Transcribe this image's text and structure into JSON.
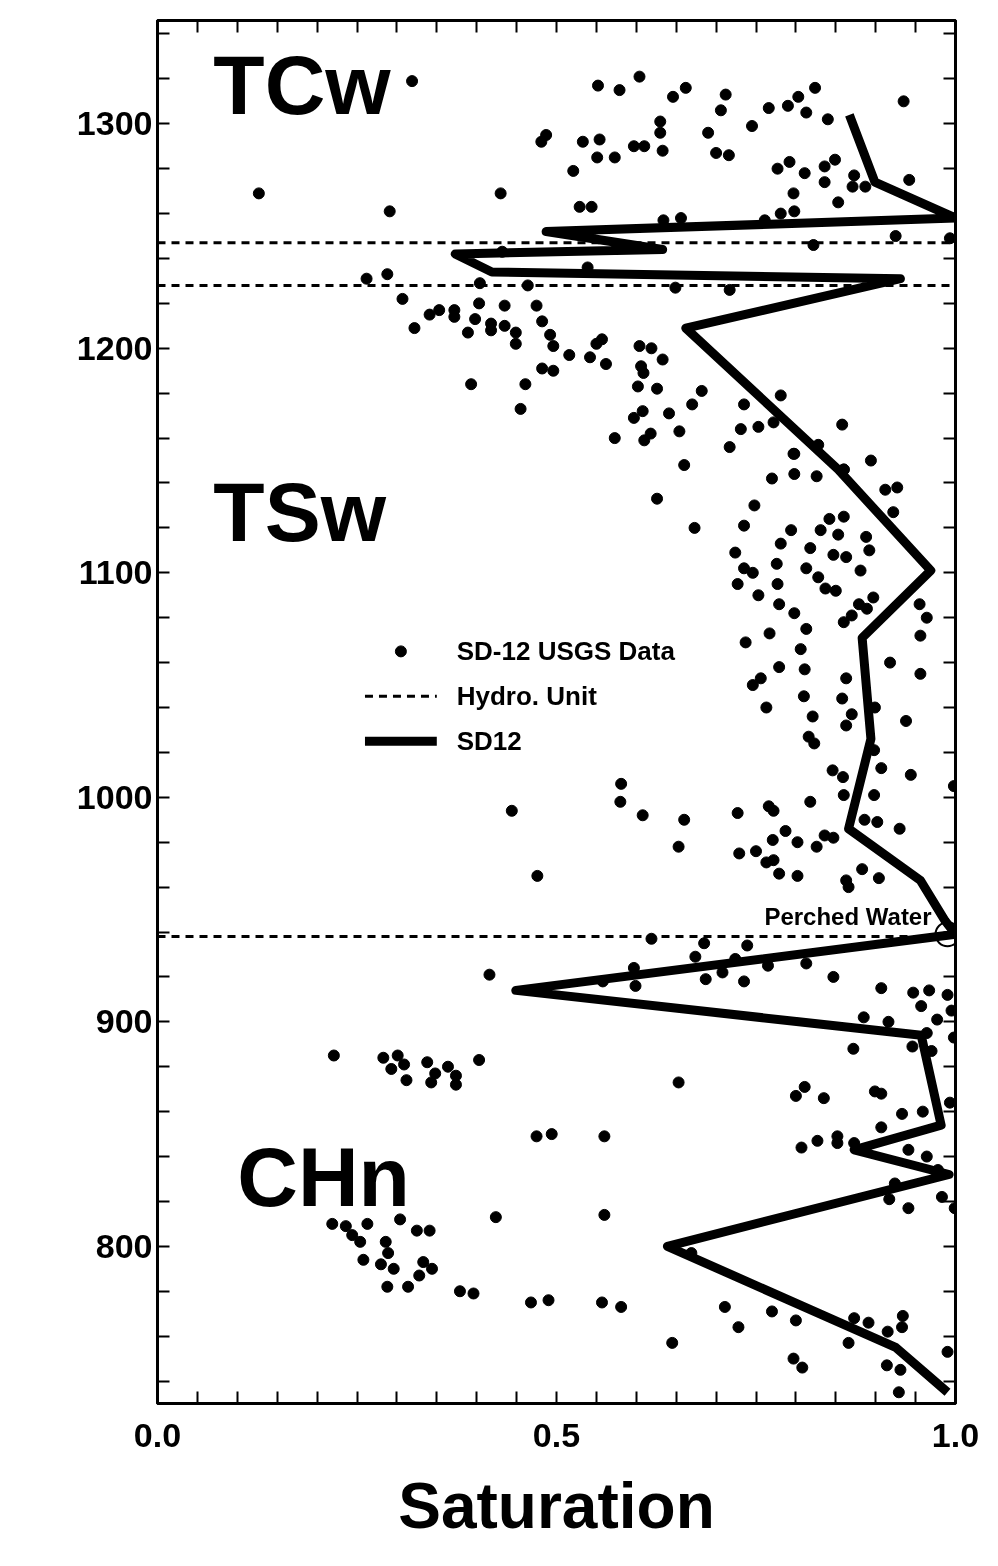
{
  "chart_data": {
    "type": "scatter",
    "xlabel": "Saturation",
    "xlim": [
      0,
      1
    ],
    "ylim": [
      730,
      1346
    ],
    "xticks": [
      {
        "value": 0,
        "label": "0.0"
      },
      {
        "value": 0.05,
        "label": null
      },
      {
        "value": 0.1,
        "label": null
      },
      {
        "value": 0.15,
        "label": null
      },
      {
        "value": 0.2,
        "label": null
      },
      {
        "value": 0.25,
        "label": null
      },
      {
        "value": 0.3,
        "label": null
      },
      {
        "value": 0.35,
        "label": null
      },
      {
        "value": 0.4,
        "label": null
      },
      {
        "value": 0.45,
        "label": null
      },
      0.5,
      {
        "value": 0.55,
        "label": null
      },
      {
        "value": 0.6,
        "label": null
      },
      {
        "value": 0.65,
        "label": null
      },
      {
        "value": 0.7,
        "label": null
      },
      {
        "value": 0.75,
        "label": null
      },
      {
        "value": 0.8,
        "label": null
      },
      {
        "value": 0.85,
        "label": null
      },
      {
        "value": 0.9,
        "label": null
      },
      {
        "value": 0.95,
        "label": null
      },
      {
        "value": 1,
        "label": "1.0"
      }
    ],
    "yticks": [
      {
        "value": 740,
        "label": null
      },
      {
        "value": 760,
        "label": null
      },
      {
        "value": 780,
        "label": null
      },
      800,
      {
        "value": 820,
        "label": null
      },
      {
        "value": 840,
        "label": null
      },
      {
        "value": 860,
        "label": null
      },
      {
        "value": 880,
        "label": null
      },
      900,
      {
        "value": 920,
        "label": null
      },
      {
        "value": 940,
        "label": null
      },
      {
        "value": 960,
        "label": null
      },
      {
        "value": 980,
        "label": null
      },
      1000,
      {
        "value": 1020,
        "label": null
      },
      {
        "value": 1040,
        "label": null
      },
      {
        "value": 1060,
        "label": null
      },
      {
        "value": 1080,
        "label": null
      },
      1100,
      {
        "value": 1120,
        "label": null
      },
      {
        "value": 1140,
        "label": null
      },
      {
        "value": 1160,
        "label": null
      },
      {
        "value": 1180,
        "label": null
      },
      1200,
      {
        "value": 1220,
        "label": null
      },
      {
        "value": 1240,
        "label": null
      },
      {
        "value": 1260,
        "label": null
      },
      {
        "value": 1280,
        "label": null
      },
      1300,
      {
        "value": 1320,
        "label": null
      },
      {
        "value": 1340,
        "label": null
      }
    ],
    "grid": false,
    "legend": "center",
    "annotations": [
      "TCw",
      "TSw",
      "CHn",
      {
        "text": "Perched Water",
        "x": 0.99,
        "y": 939
      }
    ],
    "ref_lines": [
      {
        "axis": "y",
        "value": 1247,
        "label": "Hydro. Unit",
        "line_style": "dashed",
        "color": "#000000"
      },
      {
        "axis": "y",
        "value": 1228,
        "line_style": "dashed",
        "color": "#000000"
      },
      {
        "axis": "y",
        "value": 938,
        "line_style": "dashed",
        "color": "#000000"
      }
    ],
    "series": [
      {
        "name": "SD-12 USGS Data",
        "marker": "circle",
        "color": "#000000",
        "x": [
          0.319,
          0.552,
          0.579,
          0.604,
          0.662,
          0.646,
          0.712,
          0.706,
          0.766,
          0.79,
          0.803,
          0.824,
          0.813,
          0.84,
          0.745,
          0.935,
          0.69,
          0.63,
          0.63,
          0.633,
          0.597,
          0.61,
          0.573,
          0.551,
          0.554,
          0.533,
          0.481,
          0.487,
          0.521,
          0.7,
          0.716,
          0.777,
          0.792,
          0.811,
          0.836,
          0.849,
          0.836,
          0.873,
          0.871,
          0.887,
          0.942,
          0.853,
          0.797,
          0.798,
          0.781,
          0.761,
          0.656,
          0.634,
          0.529,
          0.544,
          0.43,
          0.127,
          0.291,
          0.925,
          0.822,
          0.993,
          0.717,
          0.649,
          0.464,
          0.404,
          0.539,
          0.432,
          0.262,
          0.288,
          0.307,
          0.341,
          0.353,
          0.372,
          0.372,
          0.322,
          0.389,
          0.398,
          0.403,
          0.435,
          0.418,
          0.418,
          0.435,
          0.449,
          0.449,
          0.475,
          0.482,
          0.492,
          0.496,
          0.516,
          0.542,
          0.557,
          0.55,
          0.562,
          0.604,
          0.619,
          0.633,
          0.482,
          0.496,
          0.393,
          0.461,
          0.455,
          0.606,
          0.609,
          0.602,
          0.626,
          0.608,
          0.597,
          0.641,
          0.682,
          0.67,
          0.618,
          0.61,
          0.654,
          0.573,
          0.781,
          0.735,
          0.731,
          0.753,
          0.772,
          0.858,
          0.894,
          0.717,
          0.66,
          0.798,
          0.828,
          0.86,
          0.626,
          0.673,
          0.77,
          0.798,
          0.826,
          0.797,
          0.86,
          0.912,
          0.927,
          0.922,
          0.748,
          0.735,
          0.794,
          0.781,
          0.842,
          0.86,
          0.831,
          0.853,
          0.888,
          0.892,
          0.818,
          0.847,
          0.863,
          0.724,
          0.735,
          0.746,
          0.776,
          0.813,
          0.828,
          0.881,
          0.727,
          0.777,
          0.753,
          0.837,
          0.85,
          0.897,
          0.779,
          0.879,
          0.889,
          0.86,
          0.87,
          0.798,
          0.813,
          0.955,
          0.964,
          0.956,
          0.767,
          0.737,
          0.806,
          0.779,
          0.811,
          0.918,
          0.956,
          0.756,
          0.746,
          0.863,
          0.81,
          0.858,
          0.763,
          0.899,
          0.87,
          0.821,
          0.863,
          0.938,
          0.816,
          0.823,
          0.898,
          0.846,
          0.859,
          0.907,
          0.944,
          0.898,
          0.998,
          0.581,
          0.58,
          0.444,
          0.608,
          0.66,
          0.727,
          0.766,
          0.772,
          0.818,
          0.86,
          0.886,
          0.902,
          0.93,
          0.787,
          0.802,
          0.771,
          0.75,
          0.729,
          0.653,
          0.763,
          0.772,
          0.779,
          0.802,
          0.826,
          0.836,
          0.847,
          0.863,
          0.866,
          0.883,
          0.904,
          0.476,
          0.619,
          0.685,
          0.739,
          0.674,
          0.724,
          0.765,
          0.813,
          0.847,
          0.687,
          0.708,
          0.735,
          0.597,
          0.416,
          0.558,
          0.599,
          0.907,
          0.947,
          0.967,
          0.99,
          0.957,
          0.995,
          0.885,
          0.916,
          0.977,
          0.964,
          0.946,
          0.97,
          0.998,
          0.872,
          0.221,
          0.283,
          0.301,
          0.293,
          0.309,
          0.312,
          0.338,
          0.364,
          0.348,
          0.343,
          0.374,
          0.374,
          0.403,
          0.653,
          0.8,
          0.811,
          0.835,
          0.899,
          0.907,
          0.993,
          0.933,
          0.959,
          0.907,
          0.807,
          0.827,
          0.852,
          0.852,
          0.873,
          0.941,
          0.964,
          0.978,
          0.924,
          0.917,
          0.941,
          0.983,
          0.999,
          0.475,
          0.494,
          0.56,
          0.424,
          0.56,
          0.219,
          0.236,
          0.263,
          0.304,
          0.325,
          0.341,
          0.244,
          0.254,
          0.258,
          0.286,
          0.289,
          0.28,
          0.296,
          0.333,
          0.344,
          0.288,
          0.314,
          0.328,
          0.379,
          0.396,
          0.468,
          0.49,
          0.557,
          0.581,
          0.669,
          0.711,
          0.728,
          0.77,
          0.8,
          0.645,
          0.873,
          0.891,
          0.934,
          0.933,
          0.915,
          0.866,
          0.99,
          0.797,
          0.808,
          0.914,
          0.931,
          0.929
        ],
        "values": [
          1319,
          1317,
          1315,
          1321,
          1316,
          1312,
          1313,
          1306,
          1307,
          1308,
          1312,
          1316,
          1305,
          1302,
          1299,
          1310,
          1296,
          1301,
          1296,
          1288,
          1290,
          1290,
          1285,
          1285,
          1293,
          1292,
          1292,
          1295,
          1279,
          1287,
          1286,
          1280,
          1283,
          1278,
          1281,
          1284,
          1274,
          1277,
          1272,
          1272,
          1275,
          1265,
          1269,
          1261,
          1260,
          1257,
          1258,
          1257,
          1263,
          1263,
          1269,
          1269,
          1261,
          1250,
          1246,
          1249,
          1226,
          1227,
          1228,
          1229,
          1236,
          1243,
          1231,
          1233,
          1222,
          1215,
          1217,
          1217,
          1214,
          1209,
          1207,
          1213,
          1220,
          1219,
          1211,
          1208,
          1210,
          1207,
          1202,
          1219,
          1212,
          1206,
          1201,
          1197,
          1196,
          1204,
          1202,
          1193,
          1201,
          1200,
          1195,
          1191,
          1190,
          1184,
          1184,
          1173,
          1192,
          1189,
          1183,
          1182,
          1172,
          1169,
          1171,
          1181,
          1175,
          1162,
          1159,
          1163,
          1160,
          1179,
          1175,
          1164,
          1165,
          1167,
          1166,
          1150,
          1156,
          1148,
          1153,
          1157,
          1146,
          1133,
          1120,
          1142,
          1144,
          1143,
          1153,
          1146,
          1137,
          1138,
          1127,
          1130,
          1121,
          1119,
          1113,
          1124,
          1125,
          1119,
          1117,
          1116,
          1110,
          1111,
          1108,
          1107,
          1109,
          1102,
          1100,
          1104,
          1102,
          1098,
          1101,
          1095,
          1095,
          1090,
          1093,
          1092,
          1089,
          1086,
          1086,
          1084,
          1078,
          1081,
          1082,
          1075,
          1086,
          1080,
          1072,
          1073,
          1069,
          1066,
          1058,
          1057,
          1060,
          1055,
          1053,
          1050,
          1053,
          1045,
          1044,
          1040,
          1040,
          1037,
          1036,
          1032,
          1034,
          1027,
          1024,
          1021,
          1012,
          1009,
          1013,
          1010,
          1001,
          1005,
          1006,
          998,
          994,
          992,
          990,
          993,
          996,
          994,
          998,
          1001,
          990,
          989,
          986,
          985,
          980,
          981,
          976,
          975,
          978,
          971,
          972,
          966,
          965,
          978,
          983,
          982,
          963,
          960,
          968,
          964,
          965,
          937,
          935,
          934,
          929,
          928,
          925,
          926,
          920,
          919,
          922,
          918,
          924,
          921,
          918,
          916,
          915,
          913,
          914,
          912,
          907,
          905,
          902,
          900,
          901,
          895,
          889,
          887,
          893,
          888,
          885,
          884,
          885,
          879,
          881,
          874,
          882,
          880,
          877,
          873,
          876,
          872,
          883,
          873,
          867,
          871,
          866,
          869,
          868,
          864,
          859,
          860,
          853,
          844,
          847,
          849,
          846,
          846,
          843,
          840,
          834,
          828,
          821,
          817,
          822,
          817,
          849,
          850,
          849,
          813,
          814,
          810,
          809,
          810,
          812,
          807,
          807,
          805,
          802,
          794,
          802,
          797,
          792,
          790,
          793,
          790,
          782,
          782,
          787,
          780,
          779,
          775,
          776,
          775,
          773,
          797,
          773,
          764,
          771,
          767,
          757,
          768,
          766,
          769,
          764,
          762,
          757,
          753,
          750,
          746,
          747,
          745,
          735
        ]
      },
      {
        "name": "SD12",
        "type": "line",
        "line_style": "solid",
        "color": "#000000",
        "x": [
          0.867,
          0.899,
          1.0,
          0.487,
          0.633,
          0.373,
          0.419,
          0.931,
          0.662,
          0.853,
          0.969,
          0.883,
          0.894,
          0.866,
          0.956,
          0.987,
          1.0,
          0.449,
          0.957,
          0.982,
          0.873,
          0.992,
          0.639,
          0.925,
          0.99
        ],
        "values": [
          1304,
          1274,
          1258,
          1252,
          1244,
          1242,
          1234,
          1231,
          1209,
          1146,
          1101,
          1071,
          1026,
          986,
          963,
          945,
          939,
          914,
          894,
          854,
          843,
          832,
          800,
          755,
          735
        ]
      }
    ]
  }
}
